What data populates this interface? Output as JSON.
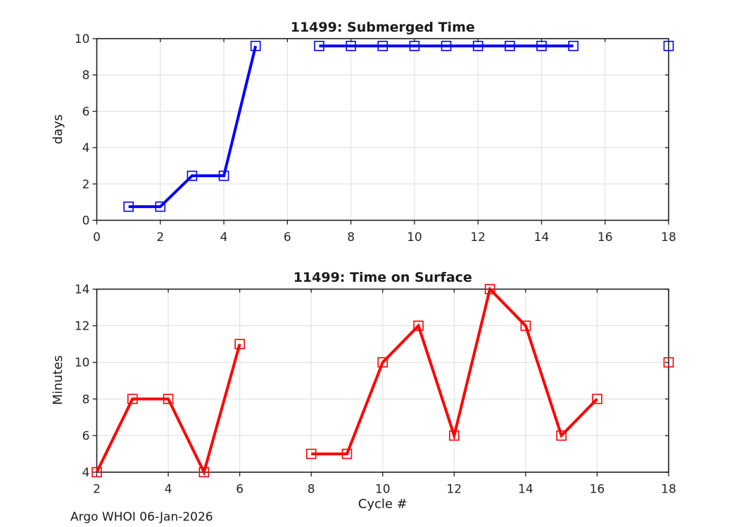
{
  "figure": {
    "annotation": "Argo WHOI 06-Jan-2026",
    "background": "#ffffff"
  },
  "style": {
    "grid_color": "#e0e0e0",
    "axis_color": "#1f1f1f",
    "text_color": "#262626",
    "line_width": 4,
    "marker_size": 13,
    "marker_stroke": 1.6
  },
  "chart_data": [
    {
      "type": "line",
      "title": "11499: Submerged Time",
      "xlabel": "",
      "ylabel": "days",
      "xlim": [
        0,
        18
      ],
      "ylim": [
        0,
        10
      ],
      "xticks": [
        0,
        2,
        4,
        6,
        8,
        10,
        12,
        14,
        16,
        18
      ],
      "yticks": [
        0,
        2,
        4,
        6,
        8,
        10
      ],
      "grid": true,
      "legend": null,
      "series": [
        {
          "name": "submerged-time-days",
          "color": "#0000ff",
          "marker": "open-square",
          "x": [
            1,
            2,
            3,
            4,
            5,
            6,
            7,
            8,
            9,
            10,
            11,
            12,
            13,
            14,
            15,
            16,
            17,
            18
          ],
          "y": [
            0.75,
            0.75,
            2.45,
            2.45,
            9.6,
            null,
            9.6,
            9.6,
            9.6,
            9.6,
            9.6,
            9.6,
            9.6,
            9.6,
            9.6,
            null,
            null,
            9.6
          ]
        }
      ]
    },
    {
      "type": "line",
      "title": "11499: Time on Surface",
      "xlabel": "Cycle #",
      "ylabel": "Minutes",
      "xlim": [
        2,
        18
      ],
      "ylim": [
        4,
        14
      ],
      "xticks": [
        2,
        4,
        6,
        8,
        10,
        12,
        14,
        16,
        18
      ],
      "yticks": [
        4,
        6,
        8,
        10,
        12,
        14
      ],
      "grid": true,
      "legend": null,
      "series": [
        {
          "name": "surface-time-minutes",
          "color": "#ff0000",
          "marker": "open-square",
          "x": [
            2,
            3,
            4,
            5,
            6,
            7,
            8,
            9,
            10,
            11,
            12,
            13,
            14,
            15,
            16,
            17,
            18
          ],
          "y": [
            4,
            8,
            8,
            4,
            11,
            null,
            5,
            5,
            10,
            12,
            6,
            14,
            12,
            6,
            8,
            null,
            10
          ]
        }
      ]
    }
  ]
}
